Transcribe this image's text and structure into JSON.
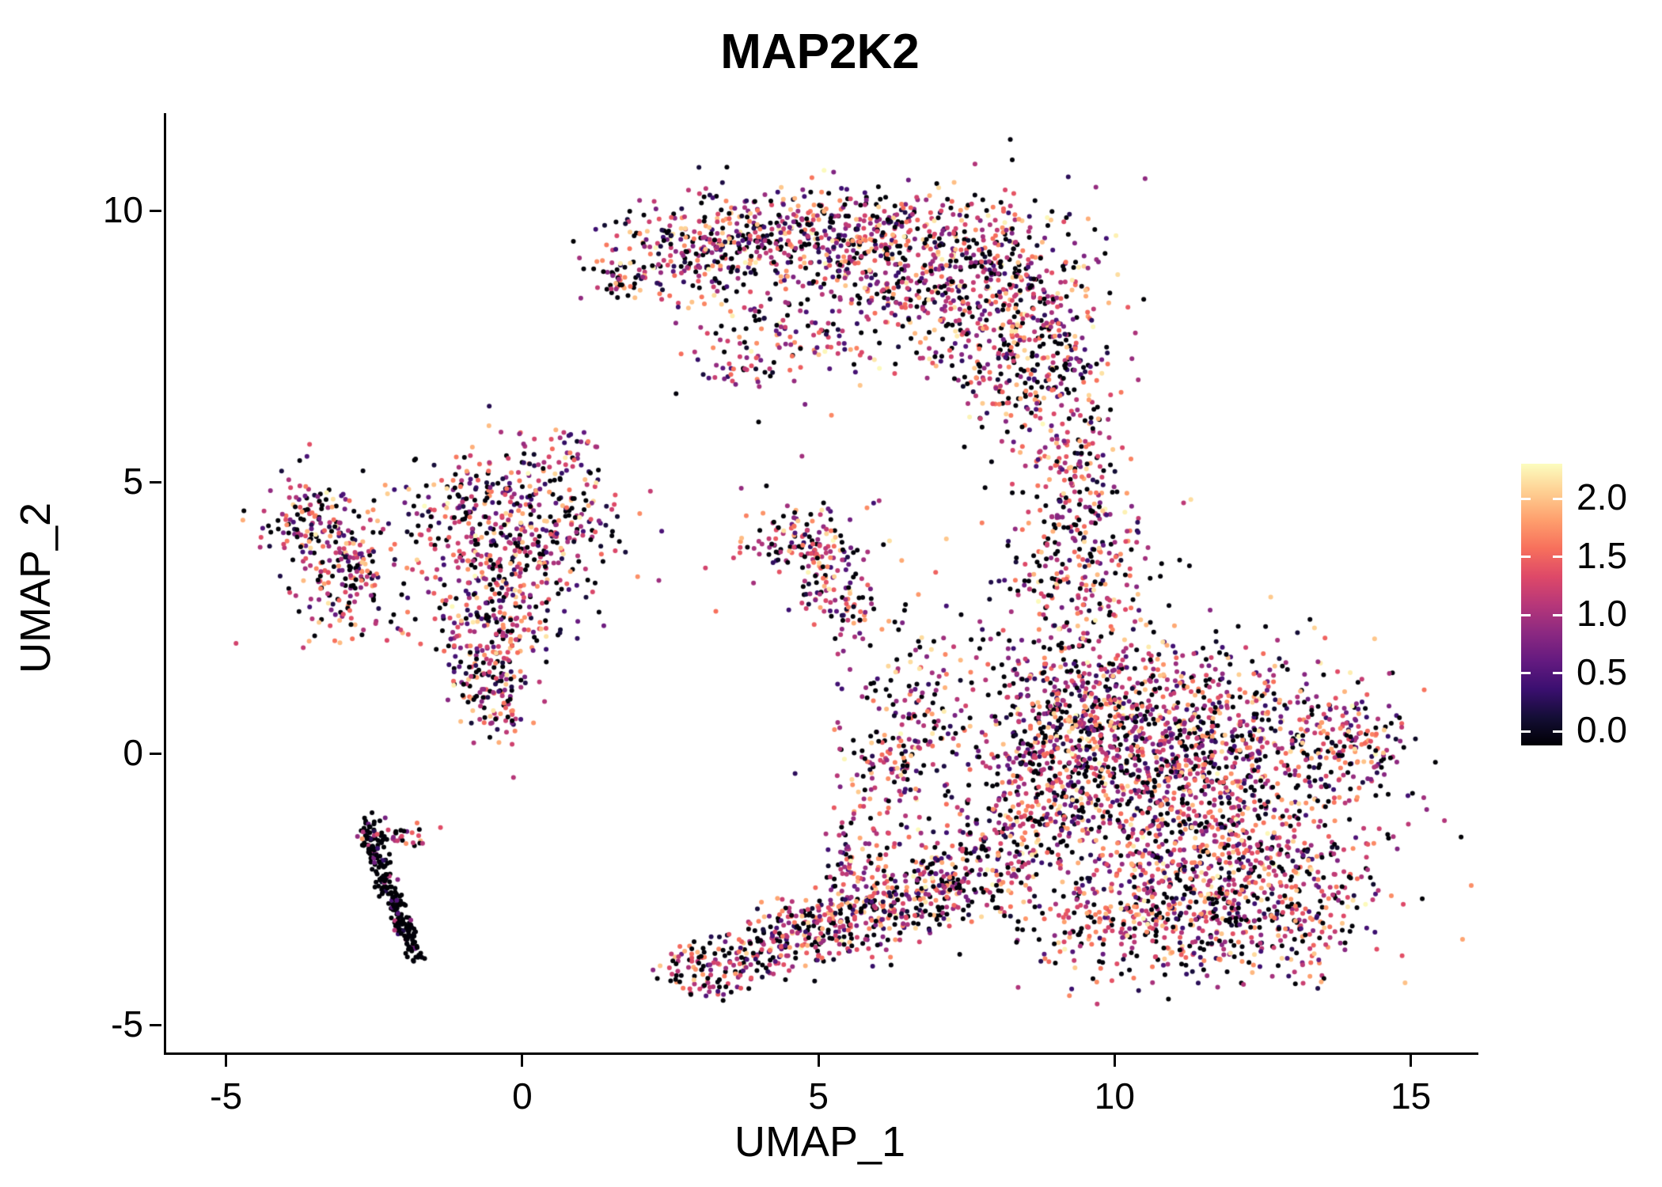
{
  "chart_data": {
    "type": "scatter",
    "title": "MAP2K2",
    "xlabel": "UMAP_1",
    "ylabel": "UMAP_2",
    "xlim": [
      -6.05,
      16.1
    ],
    "ylim": [
      -5.5,
      11.8
    ],
    "grid": false,
    "x_ticks": [
      {
        "value": -5,
        "label": "-5"
      },
      {
        "value": 0,
        "label": "0"
      },
      {
        "value": 5,
        "label": "5"
      },
      {
        "value": 10,
        "label": "10"
      },
      {
        "value": 15,
        "label": "15"
      }
    ],
    "y_ticks": [
      {
        "value": 10,
        "label": "10"
      },
      {
        "value": 5,
        "label": "5"
      },
      {
        "value": 0,
        "label": "0"
      },
      {
        "value": -5,
        "label": "-5"
      }
    ],
    "point_radius": 3,
    "seed": 42,
    "colorbar": {
      "position": "right",
      "bar_min": -0.12,
      "bar_max": 2.3,
      "value_max": 2.3,
      "colormap": "magma",
      "stops": [
        [
          0.0,
          "#000004"
        ],
        [
          0.1,
          "#140e36"
        ],
        [
          0.2,
          "#3b0f70"
        ],
        [
          0.3,
          "#641a80"
        ],
        [
          0.4,
          "#8c2981"
        ],
        [
          0.5,
          "#b73779"
        ],
        [
          0.6,
          "#de4968"
        ],
        [
          0.7,
          "#f7705c"
        ],
        [
          0.8,
          "#fe9f6d"
        ],
        [
          0.9,
          "#fecf92"
        ],
        [
          1.0,
          "#fcfdbf"
        ]
      ],
      "ticks": [
        {
          "value": 2.0,
          "label": "2.0"
        },
        {
          "value": 1.5,
          "label": "1.5"
        },
        {
          "value": 1.0,
          "label": "1.0"
        },
        {
          "value": 0.5,
          "label": "0.5"
        },
        {
          "value": 0.0,
          "label": "0.0"
        }
      ]
    },
    "color_profiles": {
      "default": [
        {
          "w": 0.27,
          "t": "zero"
        },
        {
          "w": 0.12,
          "t": "u",
          "a": 0.15,
          "b": 0.6
        },
        {
          "w": 0.42,
          "t": "n",
          "m": 1.15,
          "s": 0.28,
          "lo": 0.5,
          "hi": 1.75
        },
        {
          "w": 0.15,
          "t": "u",
          "a": 1.55,
          "b": 2.05
        },
        {
          "w": 0.04,
          "t": "u",
          "a": 2.0,
          "b": 2.3
        }
      ],
      "dark": [
        {
          "w": 0.8,
          "t": "zero"
        },
        {
          "w": 0.12,
          "t": "u",
          "a": 0.1,
          "b": 0.6
        },
        {
          "w": 0.08,
          "t": "u",
          "a": 0.6,
          "b": 1.2
        }
      ],
      "mixed": [
        {
          "w": 0.4,
          "t": "zero"
        },
        {
          "w": 0.3,
          "t": "u",
          "a": 0.6,
          "b": 1.3
        },
        {
          "w": 0.3,
          "t": "u",
          "a": 1.3,
          "b": 2.0
        }
      ]
    },
    "clusters": [
      {
        "name": "top-crescent-tip",
        "cx": 1.75,
        "cy": 8.7,
        "sx": 0.25,
        "sy": 0.15,
        "n": 35,
        "profile": "default"
      },
      {
        "name": "top-crescent-1",
        "cx": 3.0,
        "cy": 9.35,
        "sx": 0.8,
        "sy": 0.4,
        "n": 260,
        "profile": "default"
      },
      {
        "name": "top-crescent-2",
        "cx": 5.2,
        "cy": 9.55,
        "sx": 1.1,
        "sy": 0.45,
        "n": 380,
        "profile": "default"
      },
      {
        "name": "top-crescent-3",
        "cx": 7.3,
        "cy": 8.9,
        "sx": 1.1,
        "sy": 0.75,
        "n": 520,
        "profile": "default"
      },
      {
        "name": "top-crescent-right-lobe",
        "cx": 8.6,
        "cy": 7.4,
        "sx": 0.7,
        "sy": 0.85,
        "n": 380,
        "profile": "default"
      },
      {
        "name": "top-crescent-interior",
        "cx": 5.0,
        "cy": 8.0,
        "sx": 1.2,
        "sy": 0.6,
        "n": 140,
        "profile": "default"
      },
      {
        "name": "top-crescent-underside",
        "cx": 4.0,
        "cy": 7.3,
        "sx": 0.7,
        "sy": 0.45,
        "n": 60,
        "profile": "default"
      },
      {
        "name": "bridge-arm-upper",
        "cx": 9.3,
        "cy": 5.1,
        "sx": 0.45,
        "sy": 0.75,
        "n": 150,
        "profile": "default"
      },
      {
        "name": "bridge-arm-lower",
        "cx": 9.4,
        "cy": 3.5,
        "sx": 0.65,
        "sy": 0.75,
        "n": 200,
        "profile": "default"
      },
      {
        "name": "right-blob-upper-left",
        "cx": 9.4,
        "cy": 1.0,
        "sx": 0.8,
        "sy": 0.9,
        "n": 380,
        "profile": "default"
      },
      {
        "name": "right-blob-core-upper",
        "cx": 11.2,
        "cy": 0.4,
        "sx": 1.4,
        "sy": 0.85,
        "n": 850,
        "profile": "default"
      },
      {
        "name": "right-blob-core-lower",
        "cx": 11.4,
        "cy": -1.7,
        "sx": 1.5,
        "sy": 0.95,
        "n": 850,
        "profile": "default"
      },
      {
        "name": "right-blob-left",
        "cx": 8.7,
        "cy": -0.9,
        "sx": 0.8,
        "sy": 0.85,
        "n": 330,
        "profile": "default"
      },
      {
        "name": "right-blob-east-nub",
        "cx": 14.0,
        "cy": 0.2,
        "sx": 0.45,
        "sy": 0.45,
        "n": 130,
        "profile": "default"
      },
      {
        "name": "right-blob-bottom",
        "cx": 10.4,
        "cy": -3.2,
        "sx": 1.1,
        "sy": 0.5,
        "n": 260,
        "profile": "default"
      },
      {
        "name": "right-blob-bottom-right",
        "cx": 12.7,
        "cy": -2.9,
        "sx": 0.9,
        "sy": 0.55,
        "n": 220,
        "profile": "default"
      },
      {
        "name": "left-arm-sparse-upper",
        "cx": 6.7,
        "cy": 1.0,
        "sx": 0.55,
        "sy": 1.0,
        "n": 130,
        "profile": "default"
      },
      {
        "name": "left-arm-sparse-lower",
        "cx": 6.2,
        "cy": -0.4,
        "sx": 0.5,
        "sy": 0.7,
        "n": 110,
        "profile": "default"
      },
      {
        "name": "bottom-arm-clump",
        "cx": 3.1,
        "cy": -4.0,
        "sx": 0.35,
        "sy": 0.3,
        "n": 100,
        "profile": "default"
      },
      {
        "name": "bottom-arm-1",
        "cx": 4.1,
        "cy": -3.6,
        "sx": 0.45,
        "sy": 0.3,
        "n": 110,
        "profile": "default"
      },
      {
        "name": "bottom-arm-2",
        "cx": 5.0,
        "cy": -3.2,
        "sx": 0.5,
        "sy": 0.3,
        "n": 140,
        "profile": "default"
      },
      {
        "name": "bottom-arm-3",
        "cx": 5.9,
        "cy": -2.9,
        "sx": 0.5,
        "sy": 0.3,
        "n": 150,
        "profile": "default"
      },
      {
        "name": "bottom-arm-4",
        "cx": 6.7,
        "cy": -2.6,
        "sx": 0.5,
        "sy": 0.35,
        "n": 130,
        "profile": "default"
      },
      {
        "name": "bottom-arm-riser",
        "cx": 5.6,
        "cy": -1.9,
        "sx": 0.3,
        "sy": 0.4,
        "n": 60,
        "profile": "default"
      },
      {
        "name": "bottom-arm-join",
        "cx": 7.6,
        "cy": -2.2,
        "sx": 0.5,
        "sy": 0.4,
        "n": 120,
        "profile": "default"
      },
      {
        "name": "mid-small-upper",
        "cx": 4.55,
        "cy": 3.95,
        "sx": 0.35,
        "sy": 0.25,
        "n": 70,
        "profile": "default"
      },
      {
        "name": "mid-small-lower",
        "cx": 5.2,
        "cy": 3.35,
        "sx": 0.28,
        "sy": 0.45,
        "n": 90,
        "profile": "default"
      },
      {
        "name": "mid-small-tail",
        "cx": 5.55,
        "cy": 2.7,
        "sx": 0.25,
        "sy": 0.3,
        "n": 40,
        "profile": "default"
      },
      {
        "name": "mid-small-halo",
        "cx": 4.8,
        "cy": 3.7,
        "sx": 0.9,
        "sy": 0.7,
        "n": 30,
        "profile": "default"
      },
      {
        "name": "stray-a",
        "cx": 5.9,
        "cy": 4.6,
        "sx": 0.05,
        "sy": 0.05,
        "n": 2,
        "profile": "default"
      },
      {
        "name": "stray-b",
        "cx": 3.7,
        "cy": 3.95,
        "sx": 0.05,
        "sy": 0.05,
        "n": 2,
        "profile": "default"
      },
      {
        "name": "stray-c",
        "cx": 1.45,
        "cy": 4.55,
        "sx": 0.15,
        "sy": 0.1,
        "n": 4,
        "profile": "default"
      },
      {
        "name": "left-cluster-west-lobe",
        "cx": -3.5,
        "cy": 4.15,
        "sx": 0.45,
        "sy": 0.45,
        "n": 140,
        "profile": "default"
      },
      {
        "name": "left-cluster-southwest-lobe",
        "cx": -2.95,
        "cy": 3.25,
        "sx": 0.4,
        "sy": 0.45,
        "n": 130,
        "profile": "default"
      },
      {
        "name": "left-cluster-top-band",
        "cx": -0.3,
        "cy": 4.6,
        "sx": 0.9,
        "sy": 0.45,
        "n": 230,
        "profile": "default"
      },
      {
        "name": "left-cluster-mid-band",
        "cx": 0.1,
        "cy": 3.7,
        "sx": 0.8,
        "sy": 0.5,
        "n": 190,
        "profile": "default"
      },
      {
        "name": "left-cluster-center",
        "cx": -0.5,
        "cy": 2.7,
        "sx": 0.6,
        "sy": 0.5,
        "n": 150,
        "profile": "default"
      },
      {
        "name": "left-cluster-bottom-tail",
        "cx": -0.55,
        "cy": 1.35,
        "sx": 0.35,
        "sy": 0.55,
        "n": 180,
        "profile": "default"
      },
      {
        "name": "left-cluster-halo",
        "cx": -1.3,
        "cy": 3.4,
        "sx": 1.2,
        "sy": 1.0,
        "n": 90,
        "profile": "default"
      },
      {
        "name": "left-cluster-top-spur",
        "cx": 0.7,
        "cy": 5.5,
        "sx": 0.4,
        "sy": 0.3,
        "n": 35,
        "profile": "default"
      },
      {
        "name": "dark-streak",
        "type": "line",
        "x1": -2.65,
        "y1": -1.3,
        "x2": -1.75,
        "y2": -3.85,
        "jx": 0.09,
        "jy": 0.12,
        "n": 220,
        "profile": "dark"
      },
      {
        "name": "dark-streak-branch",
        "cx": -2.15,
        "cy": -1.55,
        "sx": 0.3,
        "sy": 0.15,
        "n": 40,
        "profile": "mixed"
      }
    ]
  }
}
